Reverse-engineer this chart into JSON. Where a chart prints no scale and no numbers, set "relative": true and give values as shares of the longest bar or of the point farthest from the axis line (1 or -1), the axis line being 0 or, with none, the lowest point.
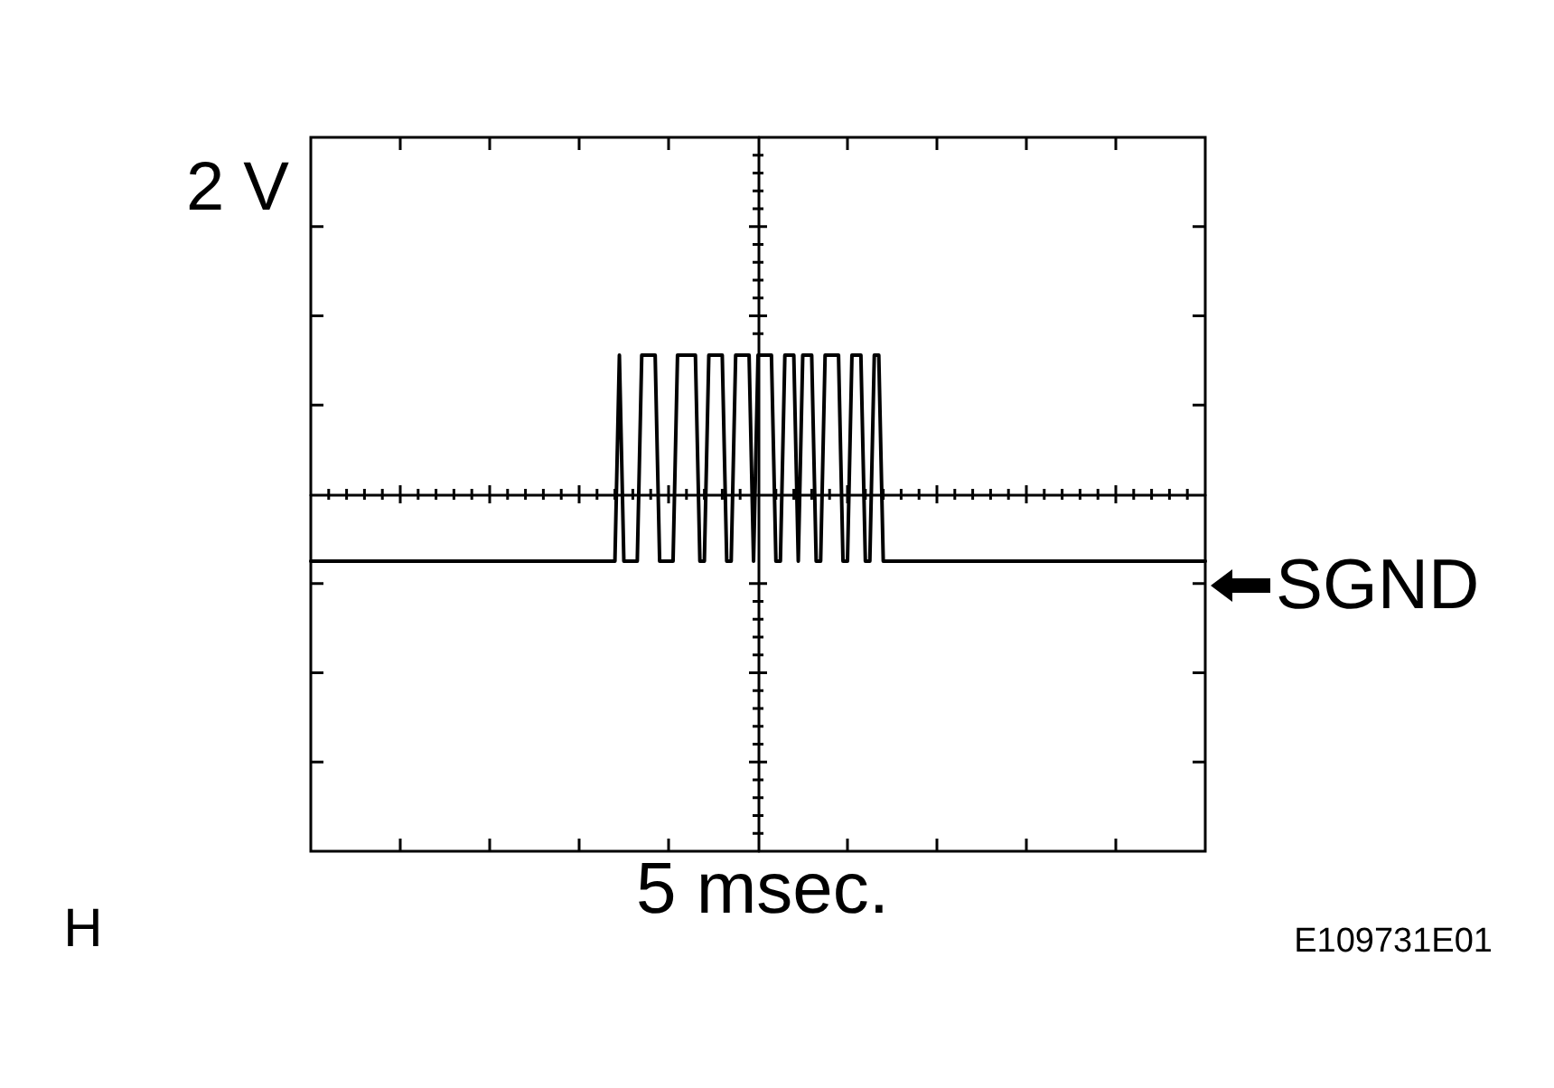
{
  "chart_data": {
    "type": "line",
    "relative": true,
    "annotations": [
      "2 V",
      "5 msec.",
      "SGND",
      "H",
      "E109731E01"
    ],
    "categories": [
      null,
      null,
      null,
      null,
      null,
      null,
      null,
      null,
      null,
      null,
      null,
      null,
      null,
      null,
      null,
      null,
      null,
      null,
      null,
      null,
      null,
      null,
      null,
      null,
      null,
      null,
      null,
      null,
      null,
      null,
      null,
      null,
      null,
      null,
      null,
      null,
      null,
      null,
      null,
      null,
      null,
      null,
      null,
      null,
      null,
      null,
      null,
      null,
      null,
      null,
      null,
      null,
      null,
      null,
      null,
      null,
      null,
      null,
      null,
      null,
      null,
      null,
      null,
      null,
      null,
      null,
      null,
      null,
      null,
      null,
      null,
      null,
      null,
      null,
      null,
      null,
      null,
      null,
      null,
      null,
      null,
      null,
      null,
      null,
      null,
      null,
      null,
      null,
      null,
      null,
      null,
      null,
      null,
      null,
      null,
      null,
      null,
      null,
      null,
      null,
      null,
      null,
      null,
      null,
      null,
      null,
      null,
      null,
      null,
      null,
      null,
      null,
      null,
      null,
      null,
      null,
      null,
      null,
      null,
      null,
      null,
      null,
      null,
      null,
      null,
      null,
      null,
      null,
      null,
      null,
      null,
      null,
      null,
      null,
      null,
      null,
      null,
      null,
      null,
      null,
      null,
      null,
      null,
      null,
      null,
      null,
      null,
      null,
      null,
      null,
      null,
      null,
      null,
      null,
      null,
      null,
      null,
      null,
      null,
      null,
      null,
      null,
      null,
      null,
      null,
      null,
      null,
      null,
      null,
      null,
      null,
      null,
      null,
      null,
      null,
      null,
      null,
      null,
      null,
      null,
      null,
      null,
      null,
      null,
      null,
      null,
      null,
      null,
      null,
      null,
      null,
      null,
      null,
      null,
      null,
      null,
      null,
      null,
      null,
      null,
      null
    ],
    "series": [
      {
        "color": "#000000",
        "values": [
          -0.48,
          -0.48,
          -0.48,
          -0.48,
          -0.48,
          -0.48,
          -0.48,
          -0.48,
          -0.48,
          -0.48,
          -0.48,
          -0.48,
          -0.48,
          -0.48,
          -0.48,
          -0.48,
          -0.48,
          -0.48,
          -0.48,
          -0.48,
          -0.48,
          -0.48,
          -0.48,
          -0.48,
          -0.48,
          -0.48,
          -0.48,
          -0.48,
          -0.48,
          -0.48,
          -0.48,
          -0.48,
          -0.48,
          -0.48,
          -0.48,
          -0.48,
          -0.48,
          -0.48,
          -0.48,
          -0.48,
          -0.48,
          -0.48,
          -0.48,
          -0.48,
          -0.48,
          -0.48,
          -0.48,
          -0.48,
          -0.48,
          -0.48,
          -0.48,
          -0.48,
          -0.48,
          -0.48,
          -0.48,
          -0.48,
          -0.48,
          -0.48,
          -0.48,
          -0.48,
          -0.48,
          -0.48,
          -0.48,
          -0.48,
          -0.48,
          -0.48,
          -0.48,
          -0.48,
          -0.48,
          1,
          -0.48,
          -0.48,
          -0.48,
          -0.48,
          1,
          1,
          1,
          1,
          -0.48,
          -0.48,
          -0.48,
          -0.48,
          1,
          1,
          1,
          1,
          1,
          -0.48,
          -0.48,
          1,
          1,
          1,
          1,
          -0.48,
          -0.48,
          1,
          1,
          1,
          1,
          -0.48,
          1,
          1,
          1,
          1,
          -0.48,
          -0.48,
          1,
          1,
          1,
          -0.48,
          1,
          1,
          1,
          -0.48,
          -0.48,
          1,
          1,
          1,
          1,
          -0.48,
          -0.48,
          1,
          1,
          1,
          -0.48,
          -0.48,
          1,
          1,
          -0.48,
          -0.48,
          -0.48,
          -0.48,
          -0.48,
          -0.48,
          -0.48,
          -0.48,
          -0.48,
          -0.48,
          -0.48,
          -0.48,
          -0.48,
          -0.48,
          -0.48,
          -0.48,
          -0.48,
          -0.48,
          -0.48,
          -0.48,
          -0.48,
          -0.48,
          -0.48,
          -0.48,
          -0.48,
          -0.48,
          -0.48,
          -0.48,
          -0.48,
          -0.48,
          -0.48,
          -0.48,
          -0.48,
          -0.48,
          -0.48,
          -0.48,
          -0.48,
          -0.48,
          -0.48,
          -0.48,
          -0.48,
          -0.48,
          -0.48,
          -0.48,
          -0.48,
          -0.48,
          -0.48,
          -0.48,
          -0.48,
          -0.48,
          -0.48,
          -0.48,
          -0.48,
          -0.48,
          -0.48,
          -0.48,
          -0.48,
          -0.48,
          -0.48,
          -0.48,
          -0.48,
          -0.48,
          -0.48,
          -0.48,
          -0.48,
          -0.48,
          -0.48,
          -0.48,
          -0.48,
          -0.48,
          -0.48,
          -0.48,
          -0.48
        ]
      }
    ]
  }
}
